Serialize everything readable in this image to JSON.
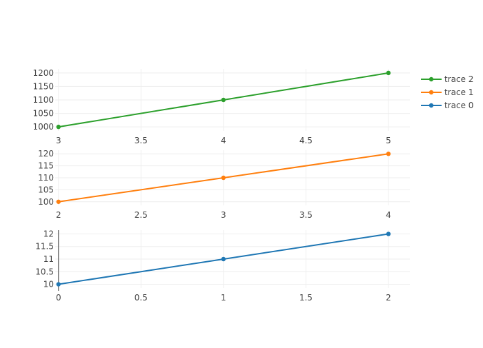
{
  "chart_data": [
    {
      "type": "line",
      "series": [
        {
          "name": "trace 2",
          "x": [
            3,
            4,
            5
          ],
          "y": [
            1000,
            1100,
            1200
          ],
          "color": "#2ca02c"
        }
      ],
      "xlim": [
        2.98,
        5.13
      ],
      "ylim": [
        985,
        1215
      ],
      "xticks": [
        3,
        3.5,
        4,
        4.5,
        5
      ],
      "xtick_labels": [
        "3",
        "3.5",
        "4",
        "4.5",
        "5"
      ],
      "yticks": [
        1000,
        1050,
        1100,
        1150,
        1200
      ],
      "ytick_labels": [
        "1000",
        "1050",
        "1100",
        "1150",
        "1200"
      ],
      "grid": true,
      "zero_line": false
    },
    {
      "type": "line",
      "series": [
        {
          "name": "trace 1",
          "x": [
            2,
            3,
            4
          ],
          "y": [
            100,
            110,
            120
          ],
          "color": "#ff7f0e"
        }
      ],
      "xlim": [
        1.98,
        4.13
      ],
      "ylim": [
        98.5,
        121.5
      ],
      "xticks": [
        2,
        2.5,
        3,
        3.5,
        4
      ],
      "xtick_labels": [
        "2",
        "2.5",
        "3",
        "3.5",
        "4"
      ],
      "yticks": [
        100,
        105,
        110,
        115,
        120
      ],
      "ytick_labels": [
        "100",
        "105",
        "110",
        "115",
        "120"
      ],
      "grid": true,
      "zero_line": false
    },
    {
      "type": "line",
      "series": [
        {
          "name": "trace 0",
          "x": [
            0,
            1,
            2
          ],
          "y": [
            10,
            11,
            12
          ],
          "color": "#1f77b4"
        }
      ],
      "xlim": [
        -0.02,
        2.13
      ],
      "ylim": [
        9.85,
        12.15
      ],
      "xticks": [
        0,
        0.5,
        1,
        1.5,
        2
      ],
      "xtick_labels": [
        "0",
        "0.5",
        "1",
        "1.5",
        "2"
      ],
      "yticks": [
        10,
        10.5,
        11,
        11.5,
        12
      ],
      "ytick_labels": [
        "10",
        "10.5",
        "11",
        "11.5",
        "12"
      ],
      "grid": true,
      "zero_line": true
    }
  ],
  "legend": {
    "placement": "top-right",
    "items": [
      {
        "label": "trace 2",
        "color": "#2ca02c"
      },
      {
        "label": "trace 1",
        "color": "#ff7f0e"
      },
      {
        "label": "trace 0",
        "color": "#1f77b4"
      }
    ]
  }
}
